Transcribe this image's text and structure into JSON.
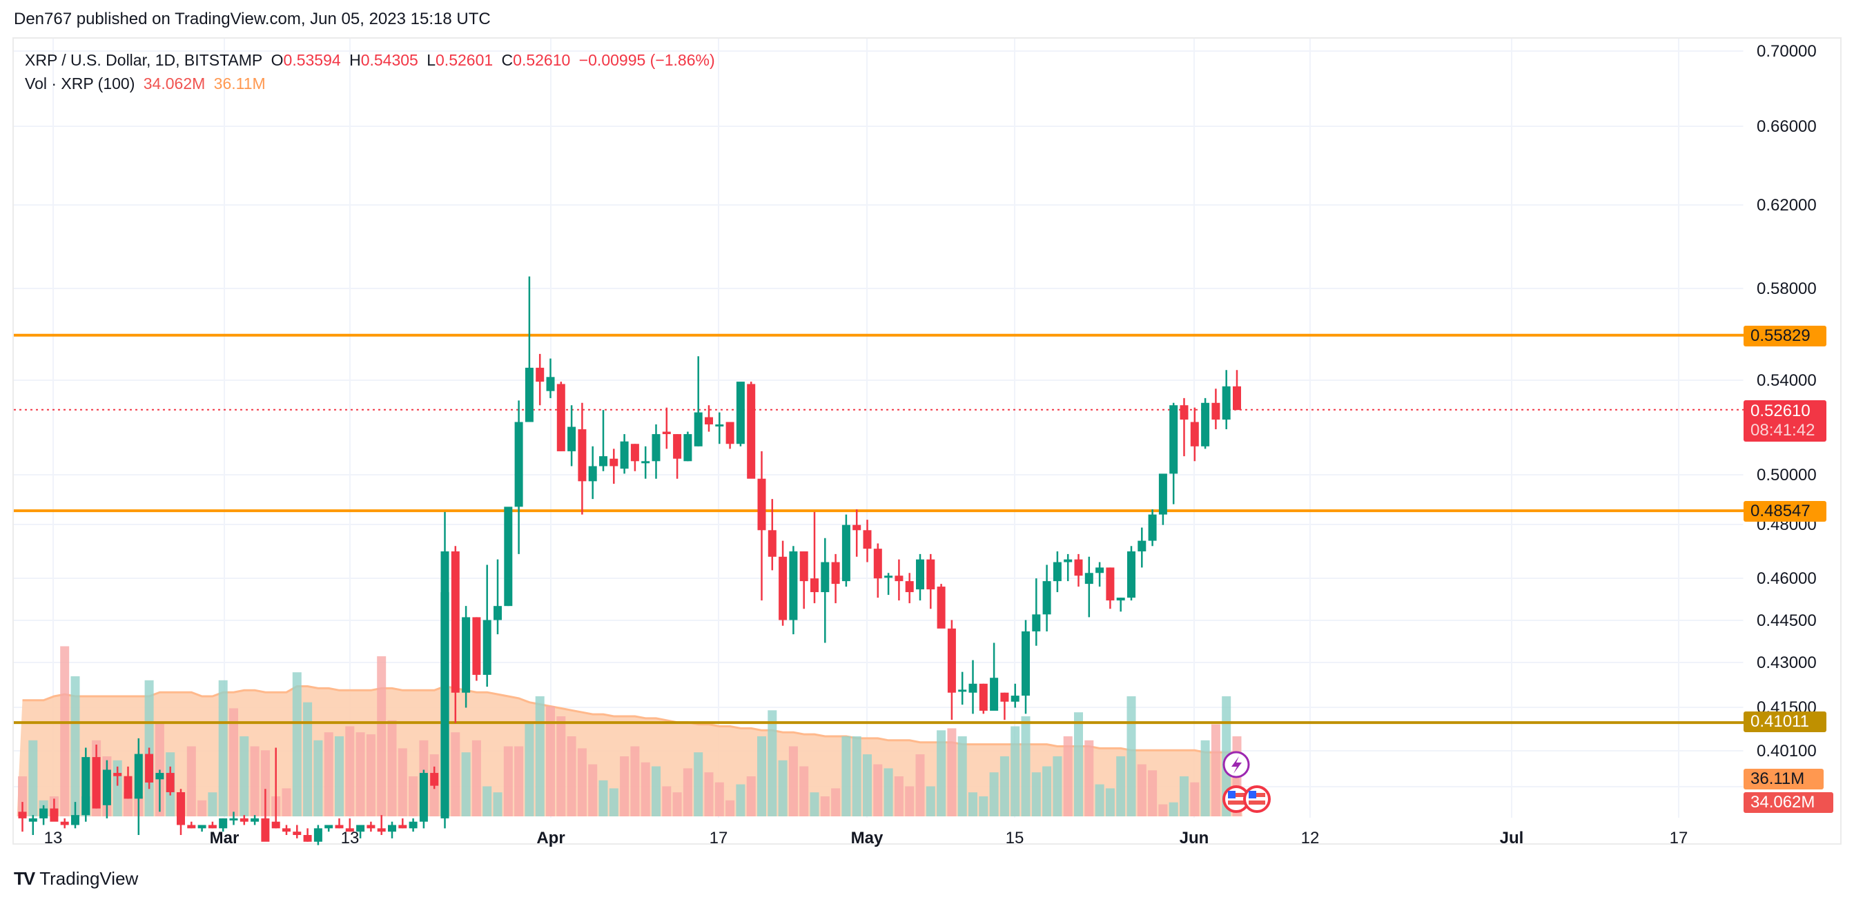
{
  "header": {
    "published": "Den767 published on TradingView.com, Jun 05, 2023 15:18 UTC"
  },
  "legend": {
    "symbol": "XRP / U.S. Dollar, 1D, BITSTAMP",
    "o_label": "O",
    "o": "0.53594",
    "h_label": "H",
    "h": "0.54305",
    "l_label": "L",
    "l": "0.52601",
    "c_label": "C",
    "c": "0.52610",
    "change": "−0.00995 (−1.86%)",
    "vol_label": "Vol · XRP (100)",
    "vol_value": "34.062M",
    "vol_ma": "36.11M"
  },
  "price_tags": {
    "resistance_top": "0.55829",
    "current_price": "0.52610",
    "countdown": "08:41:42",
    "support_mid": "0.48547",
    "support_low": "0.41011",
    "vol_ma": "36.11M",
    "vol": "34.062M"
  },
  "colors": {
    "up": "#089981",
    "down": "#f23645",
    "orange_line": "#ff9800",
    "gold_line": "#bf9000",
    "vol_up": "#93d2ca",
    "vol_down": "#f7a9a7",
    "vol_ma_fill": "#fdcfb0",
    "grid": "#f0f3fa"
  },
  "footer": {
    "brand": "TradingView",
    "logo": "TV"
  },
  "chart_data": {
    "type": "candlestick",
    "title": "XRP / U.S. Dollar, 1D, BITSTAMP",
    "y_scale": "log",
    "y_ticks": [
      "0.70000",
      "0.66000",
      "0.62000",
      "0.58000",
      "0.54000",
      "0.50000",
      "0.48000",
      "0.46000",
      "0.44500",
      "0.43000",
      "0.41500",
      "0.40100"
    ],
    "x_ticks": [
      {
        "label": "13",
        "bold": false
      },
      {
        "label": "Mar",
        "bold": true
      },
      {
        "label": "13",
        "bold": false
      },
      {
        "label": "Apr",
        "bold": true
      },
      {
        "label": "17",
        "bold": false
      },
      {
        "label": "May",
        "bold": true
      },
      {
        "label": "15",
        "bold": false
      },
      {
        "label": "Jun",
        "bold": true
      },
      {
        "label": "12",
        "bold": false
      },
      {
        "label": "Jul",
        "bold": true
      },
      {
        "label": "17",
        "bold": false
      }
    ],
    "horizontal_lines": [
      {
        "price": 0.55829,
        "color": "#ff9800"
      },
      {
        "price": 0.48547,
        "color": "#ff9800"
      },
      {
        "price": 0.41011,
        "color": "#bf9000"
      }
    ],
    "last_price": 0.5261,
    "start_date": "2023-02-09",
    "candles": [
      [
        0.382,
        0.385,
        0.376,
        0.38
      ],
      [
        0.379,
        0.381,
        0.375,
        0.38
      ],
      [
        0.38,
        0.384,
        0.378,
        0.383
      ],
      [
        0.383,
        0.386,
        0.381,
        0.379
      ],
      [
        0.379,
        0.38,
        0.377,
        0.378
      ],
      [
        0.378,
        0.385,
        0.377,
        0.381
      ],
      [
        0.381,
        0.402,
        0.379,
        0.399
      ],
      [
        0.399,
        0.403,
        0.383,
        0.383
      ],
      [
        0.384,
        0.398,
        0.38,
        0.395
      ],
      [
        0.394,
        0.396,
        0.39,
        0.393
      ],
      [
        0.393,
        0.396,
        0.386,
        0.386
      ],
      [
        0.386,
        0.405,
        0.375,
        0.4
      ],
      [
        0.4,
        0.402,
        0.389,
        0.391
      ],
      [
        0.392,
        0.395,
        0.382,
        0.394
      ],
      [
        0.394,
        0.396,
        0.387,
        0.388
      ],
      [
        0.388,
        0.389,
        0.375,
        0.378
      ],
      [
        0.378,
        0.379,
        0.377,
        0.377
      ],
      [
        0.377,
        0.378,
        0.376,
        0.378
      ],
      [
        0.378,
        0.379,
        0.377,
        0.377
      ],
      [
        0.377,
        0.38,
        0.376,
        0.38
      ],
      [
        0.38,
        0.382,
        0.378,
        0.38
      ],
      [
        0.38,
        0.381,
        0.378,
        0.379
      ],
      [
        0.379,
        0.381,
        0.378,
        0.38
      ],
      [
        0.38,
        0.389,
        0.374,
        0.373
      ],
      [
        0.379,
        0.402,
        0.377,
        0.377
      ],
      [
        0.377,
        0.378,
        0.375,
        0.376
      ],
      [
        0.376,
        0.378,
        0.374,
        0.375
      ],
      [
        0.375,
        0.377,
        0.373,
        0.373
      ],
      [
        0.373,
        0.378,
        0.372,
        0.377
      ],
      [
        0.377,
        0.378,
        0.376,
        0.378
      ],
      [
        0.378,
        0.38,
        0.377,
        0.377
      ],
      [
        0.377,
        0.38,
        0.376,
        0.376
      ],
      [
        0.376,
        0.378,
        0.374,
        0.378
      ],
      [
        0.378,
        0.379,
        0.376,
        0.377
      ],
      [
        0.377,
        0.381,
        0.375,
        0.376
      ],
      [
        0.376,
        0.379,
        0.374,
        0.378
      ],
      [
        0.378,
        0.38,
        0.377,
        0.377
      ],
      [
        0.377,
        0.38,
        0.376,
        0.379
      ],
      [
        0.379,
        0.395,
        0.377,
        0.394
      ],
      [
        0.394,
        0.396,
        0.389,
        0.39
      ],
      [
        0.38,
        0.485,
        0.377,
        0.47
      ],
      [
        0.47,
        0.472,
        0.41,
        0.42
      ],
      [
        0.42,
        0.45,
        0.415,
        0.446
      ],
      [
        0.446,
        0.446,
        0.424,
        0.426
      ],
      [
        0.426,
        0.465,
        0.422,
        0.445
      ],
      [
        0.445,
        0.467,
        0.44,
        0.45
      ],
      [
        0.45,
        0.48,
        0.45,
        0.487
      ],
      [
        0.487,
        0.53,
        0.469,
        0.521
      ],
      [
        0.521,
        0.585,
        0.521,
        0.544
      ],
      [
        0.544,
        0.55,
        0.528,
        0.538
      ],
      [
        0.534,
        0.548,
        0.531,
        0.54
      ],
      [
        0.537,
        0.538,
        0.509,
        0.509
      ],
      [
        0.509,
        0.528,
        0.503,
        0.519
      ],
      [
        0.518,
        0.529,
        0.484,
        0.497
      ],
      [
        0.497,
        0.511,
        0.49,
        0.503
      ],
      [
        0.503,
        0.526,
        0.501,
        0.507
      ],
      [
        0.506,
        0.51,
        0.496,
        0.503
      ],
      [
        0.502,
        0.516,
        0.5,
        0.513
      ],
      [
        0.512,
        0.512,
        0.501,
        0.505
      ],
      [
        0.505,
        0.511,
        0.498,
        0.505
      ],
      [
        0.505,
        0.52,
        0.498,
        0.516
      ],
      [
        0.517,
        0.527,
        0.51,
        0.516
      ],
      [
        0.516,
        0.516,
        0.498,
        0.506
      ],
      [
        0.505,
        0.517,
        0.505,
        0.516
      ],
      [
        0.511,
        0.549,
        0.511,
        0.525
      ],
      [
        0.523,
        0.528,
        0.517,
        0.52
      ],
      [
        0.52,
        0.525,
        0.512,
        0.52
      ],
      [
        0.521,
        0.521,
        0.51,
        0.512
      ],
      [
        0.512,
        0.535,
        0.511,
        0.538
      ],
      [
        0.537,
        0.538,
        0.522,
        0.498
      ],
      [
        0.498,
        0.509,
        0.452,
        0.478
      ],
      [
        0.478,
        0.49,
        0.463,
        0.468
      ],
      [
        0.468,
        0.474,
        0.443,
        0.445
      ],
      [
        0.445,
        0.472,
        0.44,
        0.47
      ],
      [
        0.47,
        0.47,
        0.449,
        0.459
      ],
      [
        0.46,
        0.485,
        0.451,
        0.455
      ],
      [
        0.455,
        0.475,
        0.437,
        0.466
      ],
      [
        0.466,
        0.469,
        0.451,
        0.458
      ],
      [
        0.459,
        0.484,
        0.457,
        0.48
      ],
      [
        0.48,
        0.486,
        0.468,
        0.478
      ],
      [
        0.478,
        0.482,
        0.466,
        0.471
      ],
      [
        0.471,
        0.473,
        0.453,
        0.46
      ],
      [
        0.461,
        0.462,
        0.454,
        0.461
      ],
      [
        0.461,
        0.467,
        0.452,
        0.459
      ],
      [
        0.459,
        0.462,
        0.451,
        0.455
      ],
      [
        0.456,
        0.469,
        0.452,
        0.467
      ],
      [
        0.467,
        0.469,
        0.449,
        0.456
      ],
      [
        0.457,
        0.458,
        0.443,
        0.442
      ],
      [
        0.442,
        0.445,
        0.411,
        0.42
      ],
      [
        0.421,
        0.427,
        0.416,
        0.421
      ],
      [
        0.42,
        0.431,
        0.413,
        0.423
      ],
      [
        0.423,
        0.423,
        0.413,
        0.414
      ],
      [
        0.414,
        0.437,
        0.421,
        0.425
      ],
      [
        0.42,
        0.42,
        0.411,
        0.417
      ],
      [
        0.417,
        0.423,
        0.415,
        0.419
      ],
      [
        0.419,
        0.445,
        0.413,
        0.441
      ],
      [
        0.441,
        0.46,
        0.436,
        0.447
      ],
      [
        0.447,
        0.465,
        0.441,
        0.459
      ],
      [
        0.459,
        0.47,
        0.455,
        0.466
      ],
      [
        0.466,
        0.469,
        0.459,
        0.467
      ],
      [
        0.467,
        0.469,
        0.457,
        0.461
      ],
      [
        0.458,
        0.468,
        0.446,
        0.462
      ],
      [
        0.462,
        0.466,
        0.457,
        0.464
      ],
      [
        0.464,
        0.464,
        0.449,
        0.452
      ],
      [
        0.452,
        0.453,
        0.448,
        0.453
      ],
      [
        0.453,
        0.472,
        0.452,
        0.47
      ],
      [
        0.47,
        0.479,
        0.464,
        0.474
      ],
      [
        0.474,
        0.486,
        0.472,
        0.484
      ],
      [
        0.484,
        0.497,
        0.48,
        0.5
      ],
      [
        0.5,
        0.529,
        0.488,
        0.528
      ],
      [
        0.528,
        0.531,
        0.507,
        0.522
      ],
      [
        0.521,
        0.527,
        0.505,
        0.511
      ],
      [
        0.511,
        0.531,
        0.51,
        0.529
      ],
      [
        0.529,
        0.535,
        0.518,
        0.522
      ],
      [
        0.522,
        0.543,
        0.518,
        0.536
      ],
      [
        0.536,
        0.543,
        0.526,
        0.526
      ]
    ],
    "volumes": [
      [
        0.2,
        0
      ],
      [
        0.38,
        1
      ],
      [
        0.08,
        1
      ],
      [
        0.1,
        0
      ],
      [
        0.85,
        0
      ],
      [
        0.7,
        1
      ],
      [
        0.1,
        1
      ],
      [
        0.38,
        0
      ],
      [
        0.3,
        0
      ],
      [
        0.28,
        1
      ],
      [
        0.12,
        0
      ],
      [
        0.1,
        0
      ],
      [
        0.68,
        1
      ],
      [
        0.47,
        0
      ],
      [
        0.32,
        1
      ],
      [
        0.12,
        0
      ],
      [
        0.35,
        0
      ],
      [
        0.08,
        0
      ],
      [
        0.12,
        1
      ],
      [
        0.68,
        1
      ],
      [
        0.54,
        0
      ],
      [
        0.4,
        1
      ],
      [
        0.35,
        0
      ],
      [
        0.33,
        0
      ],
      [
        0.1,
        0
      ],
      [
        0.14,
        0
      ],
      [
        0.72,
        1
      ],
      [
        0.57,
        1
      ],
      [
        0.38,
        1
      ],
      [
        0.42,
        0
      ],
      [
        0.4,
        1
      ],
      [
        0.45,
        0
      ],
      [
        0.42,
        0
      ],
      [
        0.41,
        0
      ],
      [
        0.8,
        0
      ],
      [
        0.48,
        0
      ],
      [
        0.34,
        0
      ],
      [
        0.2,
        0
      ],
      [
        0.38,
        0
      ],
      [
        0.31,
        0
      ],
      [
        1.12,
        1
      ],
      [
        0.42,
        0
      ],
      [
        0.32,
        1
      ],
      [
        0.38,
        0
      ],
      [
        0.15,
        1
      ],
      [
        0.12,
        1
      ],
      [
        0.35,
        0
      ],
      [
        0.35,
        0
      ],
      [
        0.47,
        1
      ],
      [
        0.6,
        1
      ],
      [
        0.55,
        0
      ],
      [
        0.5,
        0
      ],
      [
        0.4,
        0
      ],
      [
        0.34,
        0
      ],
      [
        0.26,
        0
      ],
      [
        0.18,
        1
      ],
      [
        0.14,
        1
      ],
      [
        0.3,
        0
      ],
      [
        0.35,
        0
      ],
      [
        0.27,
        0
      ],
      [
        0.25,
        1
      ],
      [
        0.15,
        0
      ],
      [
        0.12,
        0
      ],
      [
        0.24,
        0
      ],
      [
        0.32,
        1
      ],
      [
        0.22,
        0
      ],
      [
        0.17,
        0
      ],
      [
        0.08,
        0
      ],
      [
        0.16,
        1
      ],
      [
        0.2,
        0
      ],
      [
        0.4,
        1
      ],
      [
        0.53,
        1
      ],
      [
        0.28,
        1
      ],
      [
        0.35,
        0
      ],
      [
        0.25,
        0
      ],
      [
        0.12,
        1
      ],
      [
        0.1,
        0
      ],
      [
        0.14,
        0
      ],
      [
        0.4,
        1
      ],
      [
        0.4,
        1
      ],
      [
        0.31,
        1
      ],
      [
        0.26,
        0
      ],
      [
        0.24,
        1
      ],
      [
        0.2,
        0
      ],
      [
        0.15,
        0
      ],
      [
        0.31,
        0
      ],
      [
        0.15,
        1
      ],
      [
        0.43,
        1
      ],
      [
        0.44,
        0
      ],
      [
        0.4,
        1
      ],
      [
        0.12,
        1
      ],
      [
        0.1,
        1
      ],
      [
        0.22,
        1
      ],
      [
        0.3,
        1
      ],
      [
        0.45,
        1
      ],
      [
        0.5,
        1
      ],
      [
        0.22,
        1
      ],
      [
        0.25,
        1
      ],
      [
        0.3,
        1
      ],
      [
        0.4,
        0
      ],
      [
        0.52,
        1
      ],
      [
        0.38,
        0
      ],
      [
        0.16,
        1
      ],
      [
        0.14,
        1
      ],
      [
        0.3,
        1
      ],
      [
        0.6,
        1
      ],
      [
        0.26,
        0
      ],
      [
        0.23,
        0
      ],
      [
        0.06,
        0
      ],
      [
        0.07,
        1
      ],
      [
        0.2,
        1
      ],
      [
        0.17,
        0
      ],
      [
        0.38,
        1
      ],
      [
        0.46,
        0
      ],
      [
        0.6,
        1
      ],
      [
        0.4,
        0
      ]
    ],
    "volume_ma": [
      0.58,
      0.58,
      0.58,
      0.6,
      0.61,
      0.6,
      0.6,
      0.6,
      0.6,
      0.6,
      0.6,
      0.6,
      0.6,
      0.62,
      0.62,
      0.62,
      0.62,
      0.6,
      0.6,
      0.62,
      0.62,
      0.63,
      0.63,
      0.62,
      0.62,
      0.62,
      0.65,
      0.65,
      0.64,
      0.64,
      0.63,
      0.63,
      0.63,
      0.63,
      0.64,
      0.64,
      0.63,
      0.63,
      0.63,
      0.63,
      0.65,
      0.64,
      0.63,
      0.62,
      0.62,
      0.61,
      0.6,
      0.59,
      0.57,
      0.56,
      0.55,
      0.54,
      0.53,
      0.52,
      0.51,
      0.51,
      0.5,
      0.5,
      0.5,
      0.49,
      0.49,
      0.48,
      0.47,
      0.47,
      0.46,
      0.46,
      0.45,
      0.45,
      0.44,
      0.44,
      0.43,
      0.43,
      0.42,
      0.42,
      0.41,
      0.41,
      0.4,
      0.4,
      0.4,
      0.39,
      0.39,
      0.39,
      0.38,
      0.38,
      0.38,
      0.37,
      0.37,
      0.37,
      0.37,
      0.36,
      0.36,
      0.36,
      0.36,
      0.36,
      0.36,
      0.36,
      0.36,
      0.36,
      0.35,
      0.35,
      0.35,
      0.35,
      0.34,
      0.34,
      0.34,
      0.33,
      0.33,
      0.33,
      0.33,
      0.33,
      0.33,
      0.33,
      0.32,
      0.32,
      0.32,
      0.32
    ]
  }
}
